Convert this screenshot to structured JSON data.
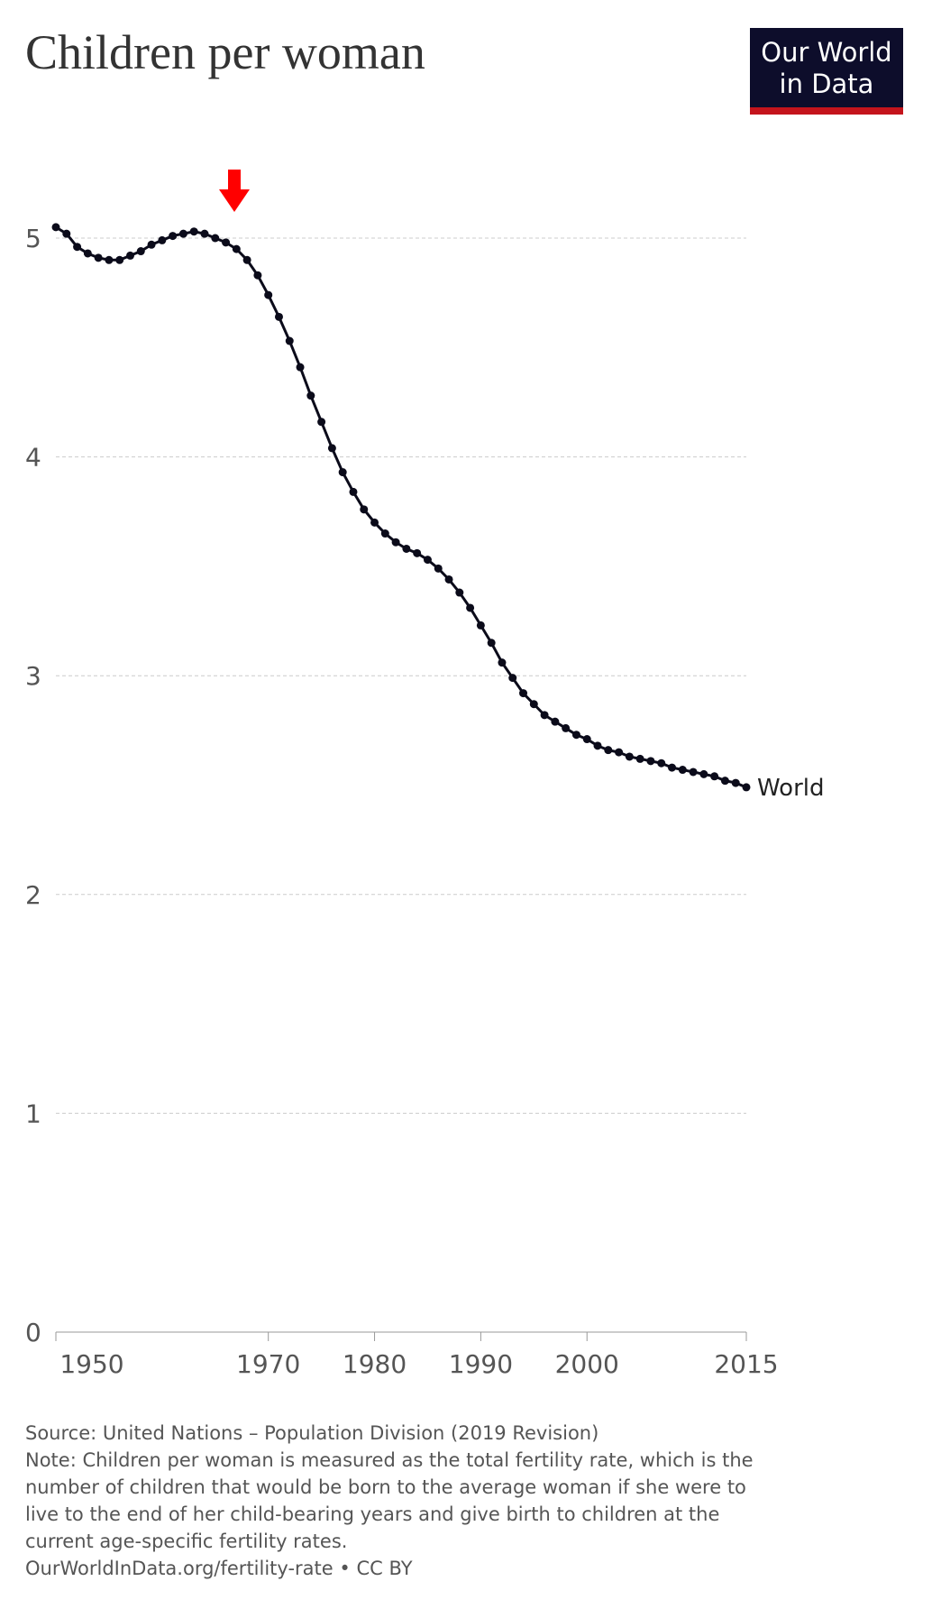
{
  "chart_data": {
    "type": "line",
    "title": "Children per woman",
    "logo": [
      "Our World",
      "in Data"
    ],
    "x": [
      1950,
      1951,
      1952,
      1953,
      1954,
      1955,
      1956,
      1957,
      1958,
      1959,
      1960,
      1961,
      1962,
      1963,
      1964,
      1965,
      1966,
      1967,
      1968,
      1969,
      1970,
      1971,
      1972,
      1973,
      1974,
      1975,
      1976,
      1977,
      1978,
      1979,
      1980,
      1981,
      1982,
      1983,
      1984,
      1985,
      1986,
      1987,
      1988,
      1989,
      1990,
      1991,
      1992,
      1993,
      1994,
      1995,
      1996,
      1997,
      1998,
      1999,
      2000,
      2001,
      2002,
      2003,
      2004,
      2005,
      2006,
      2007,
      2008,
      2009,
      2010,
      2011,
      2012,
      2013,
      2014,
      2015
    ],
    "series": [
      {
        "name": "World",
        "color": "#0b0b1a",
        "values": [
          5.05,
          5.02,
          4.96,
          4.93,
          4.91,
          4.9,
          4.9,
          4.92,
          4.94,
          4.97,
          4.99,
          5.01,
          5.02,
          5.03,
          5.02,
          5.0,
          4.98,
          4.95,
          4.9,
          4.83,
          4.74,
          4.64,
          4.53,
          4.41,
          4.28,
          4.16,
          4.04,
          3.93,
          3.84,
          3.76,
          3.7,
          3.65,
          3.61,
          3.58,
          3.56,
          3.53,
          3.49,
          3.44,
          3.38,
          3.31,
          3.23,
          3.15,
          3.06,
          2.99,
          2.92,
          2.87,
          2.82,
          2.79,
          2.76,
          2.73,
          2.71,
          2.68,
          2.66,
          2.65,
          2.63,
          2.62,
          2.61,
          2.6,
          2.58,
          2.57,
          2.56,
          2.55,
          2.54,
          2.52,
          2.51,
          2.49
        ]
      }
    ],
    "xlim": [
      1950,
      2015
    ],
    "xticks": [
      1950,
      1970,
      1980,
      1990,
      2000,
      2015
    ],
    "ylim": [
      0,
      5
    ],
    "yticks": [
      0,
      1,
      2,
      3,
      4,
      5
    ],
    "grid": true,
    "source": "Source: United Nations – Population Division (2019 Revision)",
    "note": [
      "Note: Children per woman is measured as the total fertility rate, which is the",
      "number of children that would be born to the average woman if she were to",
      "live to the end of her child-bearing years and give birth to children at the",
      "current age-specific fertility rates."
    ],
    "url": "OurWorldInData.org/fertility-rate • CC BY"
  }
}
